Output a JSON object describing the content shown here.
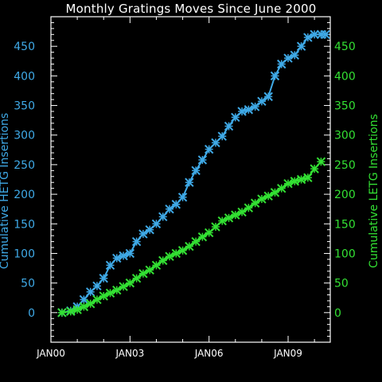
{
  "chart_data": {
    "type": "line",
    "title": "Monthly Gratings Moves Since June 2000",
    "ylabel_left": "Cumulative HETG Insertions",
    "ylabel_right": "Cumulative LETG Insertions",
    "x_ticks": [
      "JAN00",
      "JAN03",
      "JAN06",
      "JAN09"
    ],
    "x_tick_years": [
      2000,
      2003,
      2006,
      2009
    ],
    "xlim": [
      2000.0,
      2010.6
    ],
    "ylim": [
      -50,
      500
    ],
    "y_ticks": [
      0,
      50,
      100,
      150,
      200,
      250,
      300,
      350,
      400,
      450
    ],
    "grid": false,
    "series": [
      {
        "name": "HETG",
        "color": "#3fa9e6",
        "marker": "x",
        "x": [
          2000.42,
          2000.75,
          2001.0,
          2001.25,
          2001.5,
          2001.75,
          2002.0,
          2002.25,
          2002.5,
          2002.75,
          2003.0,
          2003.25,
          2003.5,
          2003.75,
          2004.0,
          2004.25,
          2004.5,
          2004.75,
          2005.0,
          2005.25,
          2005.5,
          2005.75,
          2006.0,
          2006.25,
          2006.5,
          2006.75,
          2007.0,
          2007.25,
          2007.5,
          2007.75,
          2008.0,
          2008.25,
          2008.5,
          2008.75,
          2009.0,
          2009.25,
          2009.5,
          2009.75,
          2010.0,
          2010.25,
          2010.42
        ],
        "values": [
          0,
          3,
          10,
          22,
          35,
          45,
          58,
          80,
          92,
          96,
          100,
          120,
          133,
          140,
          150,
          162,
          175,
          183,
          195,
          220,
          240,
          258,
          276,
          287,
          298,
          315,
          330,
          340,
          343,
          348,
          357,
          365,
          400,
          420,
          430,
          435,
          450,
          465,
          470,
          470,
          470
        ]
      },
      {
        "name": "LETG",
        "color": "#33e033",
        "marker": "x",
        "x": [
          2000.42,
          2000.75,
          2001.0,
          2001.25,
          2001.5,
          2001.75,
          2002.0,
          2002.25,
          2002.5,
          2002.75,
          2003.0,
          2003.25,
          2003.5,
          2003.75,
          2004.0,
          2004.25,
          2004.5,
          2004.75,
          2005.0,
          2005.25,
          2005.5,
          2005.75,
          2006.0,
          2006.25,
          2006.5,
          2006.75,
          2007.0,
          2007.25,
          2007.5,
          2007.75,
          2008.0,
          2008.25,
          2008.5,
          2008.75,
          2009.0,
          2009.25,
          2009.5,
          2009.75,
          2010.0,
          2010.25
        ],
        "values": [
          0,
          2,
          5,
          10,
          15,
          22,
          28,
          33,
          38,
          44,
          50,
          58,
          66,
          72,
          80,
          88,
          95,
          100,
          105,
          112,
          120,
          128,
          135,
          145,
          155,
          160,
          165,
          170,
          177,
          185,
          192,
          197,
          203,
          210,
          218,
          222,
          225,
          228,
          243,
          255
        ]
      }
    ]
  }
}
